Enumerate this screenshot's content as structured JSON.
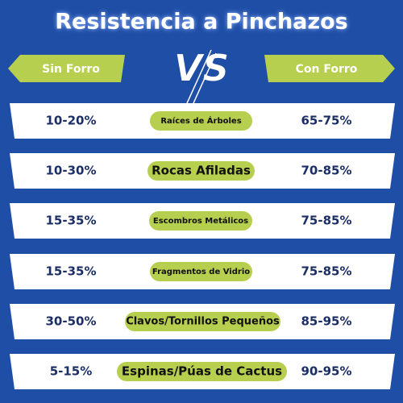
{
  "header": {
    "title": "Resistencia a Pinchazos",
    "vs": "VS"
  },
  "columns": {
    "left": "Sin Forro",
    "right": "Con Forro"
  },
  "rows": [
    {
      "left": "10-20%",
      "label": "Raíces de Árboles",
      "right": "65-75%"
    },
    {
      "left": "10-30%",
      "label": "Rocas Afiladas",
      "right": "70-85%"
    },
    {
      "left": "15-35%",
      "label": "Escombros Metálicos",
      "right": "75-85%"
    },
    {
      "left": "15-35%",
      "label": "Fragmentos de Vidrio",
      "right": "75-85%"
    },
    {
      "left": "30-50%",
      "label": "Clavos/Tornillos Pequeños",
      "right": "85-95%"
    },
    {
      "left": "5-15%",
      "label": "Espinas/Púas de Cactus",
      "right": "90-95%"
    }
  ]
}
